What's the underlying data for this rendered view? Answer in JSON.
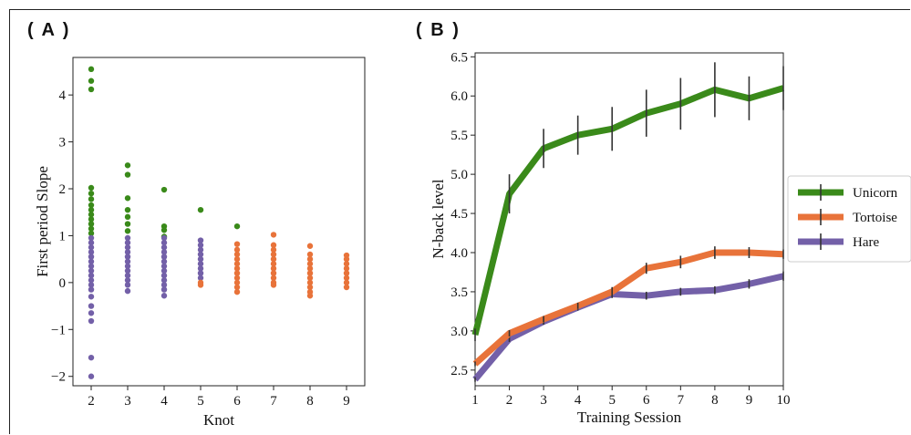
{
  "panels": {
    "a_label": "( A )",
    "b_label": "( B )"
  },
  "chart_data": [
    {
      "type": "scatter",
      "xlabel": "Knot",
      "ylabel": "First period Slope",
      "xlim": [
        1.5,
        9.5
      ],
      "ylim": [
        -2.2,
        4.8
      ],
      "xticks": [
        2,
        3,
        4,
        5,
        6,
        7,
        8,
        9
      ],
      "yticks": [
        -2,
        -1,
        0,
        1,
        2,
        3,
        4
      ],
      "ytick_labels": [
        "−2",
        "−1",
        "0",
        "1",
        "2",
        "3",
        "4"
      ],
      "colors": {
        "green": "#3a8a1a",
        "purple": "#7360a8",
        "orange": "#e8733a"
      },
      "series": [
        {
          "color_key": "green",
          "points": [
            [
              2,
              4.55
            ],
            [
              2,
              4.3
            ],
            [
              2,
              4.12
            ],
            [
              2,
              2.02
            ],
            [
              2,
              1.9
            ],
            [
              2,
              1.78
            ],
            [
              2,
              1.65
            ],
            [
              2,
              1.55
            ],
            [
              2,
              1.45
            ],
            [
              2,
              1.35
            ],
            [
              2,
              1.25
            ],
            [
              2,
              1.15
            ],
            [
              2,
              1.05
            ],
            [
              3,
              2.5
            ],
            [
              3,
              2.3
            ],
            [
              3,
              1.8
            ],
            [
              3,
              1.55
            ],
            [
              3,
              1.4
            ],
            [
              3,
              1.25
            ],
            [
              3,
              1.1
            ],
            [
              4,
              1.98
            ],
            [
              4,
              1.2
            ],
            [
              4,
              1.12
            ],
            [
              4,
              0.98
            ],
            [
              5,
              1.55
            ],
            [
              6,
              1.2
            ]
          ]
        },
        {
          "color_key": "purple",
          "points": [
            [
              2,
              0.95
            ],
            [
              2,
              0.85
            ],
            [
              2,
              0.75
            ],
            [
              2,
              0.65
            ],
            [
              2,
              0.55
            ],
            [
              2,
              0.45
            ],
            [
              2,
              0.35
            ],
            [
              2,
              0.25
            ],
            [
              2,
              0.15
            ],
            [
              2,
              0.05
            ],
            [
              2,
              -0.05
            ],
            [
              2,
              -0.15
            ],
            [
              2,
              -0.3
            ],
            [
              2,
              -0.5
            ],
            [
              2,
              -0.65
            ],
            [
              2,
              -0.82
            ],
            [
              2,
              -1.6
            ],
            [
              2,
              -2.0
            ],
            [
              3,
              0.95
            ],
            [
              3,
              0.85
            ],
            [
              3,
              0.75
            ],
            [
              3,
              0.65
            ],
            [
              3,
              0.55
            ],
            [
              3,
              0.45
            ],
            [
              3,
              0.35
            ],
            [
              3,
              0.25
            ],
            [
              3,
              0.15
            ],
            [
              3,
              0.05
            ],
            [
              3,
              -0.05
            ],
            [
              3,
              -0.18
            ],
            [
              4,
              0.95
            ],
            [
              4,
              0.85
            ],
            [
              4,
              0.75
            ],
            [
              4,
              0.65
            ],
            [
              4,
              0.55
            ],
            [
              4,
              0.45
            ],
            [
              4,
              0.35
            ],
            [
              4,
              0.25
            ],
            [
              4,
              0.15
            ],
            [
              4,
              0.05
            ],
            [
              4,
              -0.05
            ],
            [
              4,
              -0.15
            ],
            [
              4,
              -0.28
            ],
            [
              5,
              0.9
            ],
            [
              5,
              0.8
            ],
            [
              5,
              0.7
            ],
            [
              5,
              0.6
            ],
            [
              5,
              0.5
            ],
            [
              5,
              0.4
            ],
            [
              5,
              0.3
            ],
            [
              5,
              0.2
            ],
            [
              5,
              0.1
            ]
          ]
        },
        {
          "color_key": "orange",
          "points": [
            [
              5,
              0.0
            ],
            [
              5,
              -0.05
            ],
            [
              6,
              0.82
            ],
            [
              6,
              0.7
            ],
            [
              6,
              0.6
            ],
            [
              6,
              0.5
            ],
            [
              6,
              0.4
            ],
            [
              6,
              0.3
            ],
            [
              6,
              0.2
            ],
            [
              6,
              0.1
            ],
            [
              6,
              0.0
            ],
            [
              6,
              -0.1
            ],
            [
              6,
              -0.2
            ],
            [
              7,
              1.02
            ],
            [
              7,
              0.8
            ],
            [
              7,
              0.7
            ],
            [
              7,
              0.6
            ],
            [
              7,
              0.5
            ],
            [
              7,
              0.4
            ],
            [
              7,
              0.3
            ],
            [
              7,
              0.2
            ],
            [
              7,
              0.1
            ],
            [
              7,
              0.0
            ],
            [
              7,
              -0.05
            ],
            [
              8,
              0.78
            ],
            [
              8,
              0.6
            ],
            [
              8,
              0.5
            ],
            [
              8,
              0.4
            ],
            [
              8,
              0.3
            ],
            [
              8,
              0.2
            ],
            [
              8,
              0.1
            ],
            [
              8,
              0.0
            ],
            [
              8,
              -0.1
            ],
            [
              8,
              -0.2
            ],
            [
              8,
              -0.28
            ],
            [
              9,
              0.58
            ],
            [
              9,
              0.5
            ],
            [
              9,
              0.4
            ],
            [
              9,
              0.3
            ],
            [
              9,
              0.2
            ],
            [
              9,
              0.1
            ],
            [
              9,
              0.0
            ],
            [
              9,
              -0.1
            ]
          ]
        }
      ]
    },
    {
      "type": "line",
      "xlabel": "Training Session",
      "ylabel": "N-back level",
      "xlim": [
        1,
        10
      ],
      "ylim": [
        2.3,
        6.55
      ],
      "x": [
        1,
        2,
        3,
        4,
        5,
        6,
        7,
        8,
        9,
        10
      ],
      "yticks": [
        2.5,
        3.0,
        3.5,
        4.0,
        4.5,
        5.0,
        5.5,
        6.0,
        6.5
      ],
      "ytick_labels": [
        "2.5",
        "3.0",
        "3.5",
        "4.0",
        "4.5",
        "5.0",
        "5.5",
        "6.0",
        "6.5"
      ],
      "legend_position": "right",
      "series": [
        {
          "name": "Unicorn",
          "color": "#3a8a1a",
          "values": [
            2.95,
            4.75,
            5.33,
            5.5,
            5.58,
            5.78,
            5.9,
            6.08,
            5.97,
            6.1
          ],
          "errors": [
            0.08,
            0.25,
            0.25,
            0.25,
            0.28,
            0.3,
            0.33,
            0.35,
            0.28,
            0.28
          ]
        },
        {
          "name": "Tortoise",
          "color": "#e8733a",
          "values": [
            2.58,
            2.97,
            3.15,
            3.32,
            3.5,
            3.8,
            3.88,
            4.0,
            4.0,
            3.98
          ],
          "errors": [
            0.03,
            0.04,
            0.04,
            0.04,
            0.06,
            0.07,
            0.08,
            0.08,
            0.07,
            0.06
          ]
        },
        {
          "name": "Hare",
          "color": "#7360a8",
          "values": [
            2.38,
            2.9,
            3.12,
            3.3,
            3.47,
            3.45,
            3.5,
            3.52,
            3.6,
            3.7
          ],
          "errors": [
            0.03,
            0.04,
            0.04,
            0.04,
            0.05,
            0.05,
            0.05,
            0.05,
            0.06,
            0.06
          ]
        }
      ]
    }
  ]
}
